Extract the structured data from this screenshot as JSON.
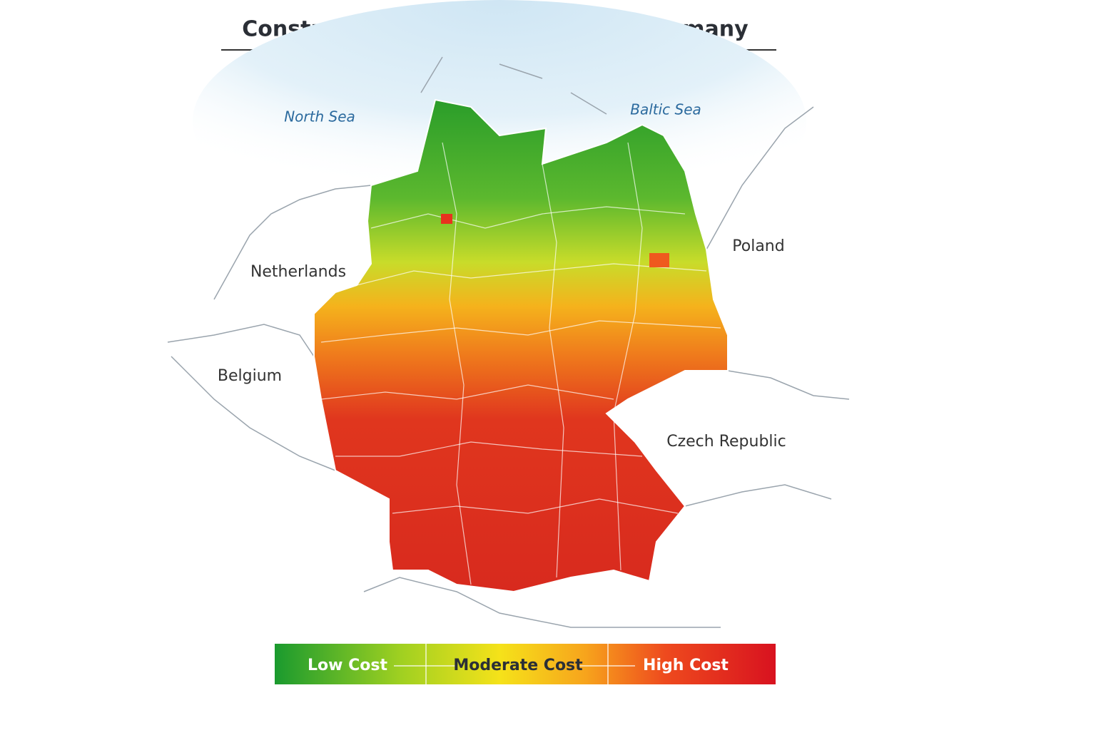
{
  "title": "Construction Cost Differences in Germany",
  "map": {
    "seas": [
      "North Sea",
      "Baltic Sea"
    ],
    "countries": [
      "Netherlands",
      "Belgium",
      "Poland",
      "Czech Republic"
    ]
  },
  "legend": {
    "items": [
      "Low Cost",
      "Moderate Cost",
      "High Cost"
    ]
  }
}
